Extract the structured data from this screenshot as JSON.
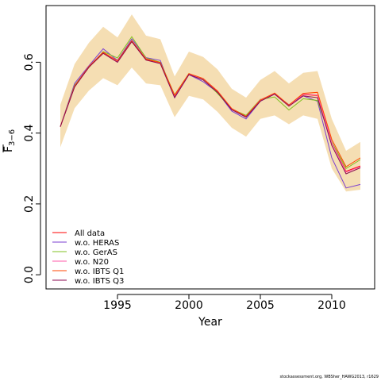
{
  "chart_data": {
    "type": "line",
    "xlabel": "Year",
    "ylabel": "F",
    "ylabel_sub": "3−6",
    "xlim": [
      1990.0,
      2013.0
    ],
    "ylim": [
      -0.04,
      0.76
    ],
    "xticks": [
      1995,
      2000,
      2005,
      2010
    ],
    "yticks": [
      0.0,
      0.2,
      0.4,
      0.6
    ],
    "ytick_labels": [
      "0.0",
      "0.2",
      "0.4",
      "0.6"
    ],
    "grid": false,
    "legend_position": "bottom-left",
    "band": {
      "color": "#f5deb3",
      "x": [
        1991,
        1992,
        1993,
        1994,
        1995,
        1996,
        1997,
        1998,
        1999,
        2000,
        2001,
        2002,
        2003,
        2004,
        2005,
        2006,
        2007,
        2008,
        2009,
        2010,
        2011,
        2012
      ],
      "lower": [
        0.36,
        0.47,
        0.52,
        0.555,
        0.535,
        0.585,
        0.54,
        0.535,
        0.445,
        0.505,
        0.495,
        0.46,
        0.415,
        0.39,
        0.44,
        0.45,
        0.425,
        0.45,
        0.44,
        0.3,
        0.235,
        0.24
      ],
      "upper": [
        0.48,
        0.595,
        0.655,
        0.7,
        0.67,
        0.735,
        0.675,
        0.665,
        0.56,
        0.63,
        0.615,
        0.58,
        0.525,
        0.5,
        0.55,
        0.575,
        0.54,
        0.57,
        0.575,
        0.44,
        0.35,
        0.375
      ]
    },
    "x": [
      1991,
      1992,
      1993,
      1994,
      1995,
      1996,
      1997,
      1998,
      1999,
      2000,
      2001,
      2002,
      2003,
      2004,
      2005,
      2006,
      2007,
      2008,
      2009,
      2010,
      2011,
      2012
    ],
    "series": [
      {
        "name": "All data",
        "color": "#ff0000",
        "values": [
          0.418,
          0.533,
          0.588,
          0.627,
          0.603,
          0.66,
          0.608,
          0.598,
          0.505,
          0.567,
          0.553,
          0.518,
          0.468,
          0.447,
          0.493,
          0.512,
          0.478,
          0.509,
          0.506,
          0.373,
          0.292,
          0.307
        ]
      },
      {
        "name": "w.o. HERAS",
        "color": "#7b3fd0",
        "values": [
          0.418,
          0.54,
          0.59,
          0.638,
          0.605,
          0.666,
          0.613,
          0.605,
          0.5,
          0.565,
          0.545,
          0.515,
          0.462,
          0.44,
          0.49,
          0.51,
          0.48,
          0.505,
          0.49,
          0.33,
          0.245,
          0.255
        ]
      },
      {
        "name": "w.o. GerAS",
        "color": "#80c020",
        "values": [
          0.418,
          0.535,
          0.585,
          0.63,
          0.612,
          0.672,
          0.612,
          0.6,
          0.508,
          0.568,
          0.552,
          0.512,
          0.468,
          0.45,
          0.495,
          0.502,
          0.465,
          0.497,
          0.492,
          0.375,
          0.3,
          0.325
        ]
      },
      {
        "name": "w.o. N20",
        "color": "#ff5aaa",
        "values": [
          0.418,
          0.532,
          0.588,
          0.628,
          0.603,
          0.66,
          0.61,
          0.598,
          0.506,
          0.567,
          0.553,
          0.519,
          0.468,
          0.447,
          0.494,
          0.512,
          0.478,
          0.51,
          0.507,
          0.372,
          0.29,
          0.305
        ]
      },
      {
        "name": "w.o. IBTS Q1",
        "color": "#ff4500",
        "values": [
          0.418,
          0.533,
          0.588,
          0.628,
          0.604,
          0.661,
          0.609,
          0.599,
          0.507,
          0.568,
          0.554,
          0.519,
          0.469,
          0.447,
          0.493,
          0.513,
          0.479,
          0.512,
          0.515,
          0.382,
          0.305,
          0.33
        ]
      },
      {
        "name": "w.o. IBTS Q3",
        "color": "#8b0a50",
        "values": [
          0.418,
          0.53,
          0.586,
          0.625,
          0.6,
          0.658,
          0.606,
          0.596,
          0.5,
          0.565,
          0.55,
          0.515,
          0.466,
          0.445,
          0.49,
          0.51,
          0.476,
          0.505,
          0.5,
          0.365,
          0.285,
          0.302
        ]
      }
    ]
  },
  "footer_text": "stockassessment.org, WBSher_HAWG2013, r1629"
}
